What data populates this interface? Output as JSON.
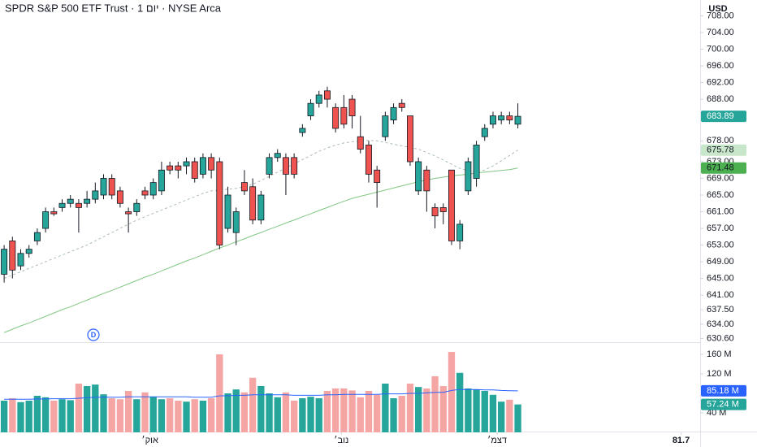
{
  "chart_data": {
    "type": "candlestick",
    "title": "SPDR S&P 500 ETF Trust · 1 יום · NYSE Arca",
    "currency": "USD",
    "event_marker": "D",
    "up_color": "#26a69a",
    "down_color": "#ef5350",
    "volume_up_color": "#26a69a",
    "volume_down_color": "#f5a6a4",
    "x": [
      0,
      1,
      2,
      3,
      4,
      5,
      6,
      7,
      8,
      9,
      10,
      11,
      12,
      13,
      14,
      15,
      16,
      17,
      18,
      19,
      20,
      21,
      22,
      23,
      24,
      25,
      26,
      27,
      28,
      29,
      30,
      31,
      32,
      33,
      34,
      35,
      36,
      37,
      38,
      39,
      40,
      41,
      42,
      43,
      44,
      45,
      46,
      47,
      48,
      49,
      50,
      51,
      52,
      53,
      54,
      55,
      56,
      57,
      58,
      59,
      60,
      61,
      62
    ],
    "xlim": [
      -0.5,
      84
    ],
    "xticks": [
      {
        "value": 17.6,
        "label": "אוק׳"
      },
      {
        "value": 40.7,
        "label": "נוב׳"
      },
      {
        "value": 59.5,
        "label": "דצמ׳"
      },
      81.7
    ],
    "xtick_labels_year": [
      3
    ],
    "open": [
      646,
      654,
      648,
      651,
      654,
      657,
      661,
      662,
      663,
      663,
      663,
      664,
      665,
      669,
      666,
      661,
      661,
      666,
      665,
      666,
      672,
      672,
      672,
      673,
      670,
      674,
      673,
      657,
      656,
      668,
      667,
      659,
      670,
      674,
      674,
      674,
      680,
      684,
      687,
      690,
      686,
      686,
      688,
      679,
      677,
      671,
      679,
      683,
      687,
      684,
      666,
      671,
      662,
      662,
      671,
      654,
      666,
      669,
      679,
      682,
      683,
      684,
      682
    ],
    "high": [
      653,
      655,
      652,
      653,
      657,
      662,
      662,
      664,
      665,
      664,
      666,
      668,
      670,
      670,
      667,
      662,
      664,
      667,
      669,
      673,
      673,
      673,
      674,
      674,
      675,
      675,
      674,
      667,
      662,
      671,
      669,
      666,
      675,
      676,
      675,
      675,
      682,
      688,
      690,
      691,
      687,
      689,
      689,
      684,
      678,
      672,
      685,
      687,
      688,
      684,
      674,
      672,
      663,
      663,
      671,
      659,
      674,
      678,
      682,
      685,
      685,
      685,
      687
    ],
    "low": [
      644,
      645,
      647,
      650,
      653,
      656,
      660,
      661,
      662,
      656,
      662,
      663,
      664,
      664,
      662,
      656,
      660,
      664,
      664,
      665,
      670,
      669,
      670,
      668,
      669,
      669,
      652,
      656,
      653,
      665,
      658,
      658,
      669,
      673,
      665,
      669,
      679,
      683,
      686,
      686,
      680,
      681,
      681,
      675,
      668,
      662,
      678,
      682,
      685,
      672,
      665,
      661,
      657,
      658,
      653,
      652,
      665,
      667,
      678,
      681,
      682,
      682,
      681
    ],
    "close": [
      652,
      647,
      651,
      652,
      656,
      661,
      660.5,
      663,
      664,
      662,
      664,
      666,
      669,
      665,
      663,
      660.5,
      663,
      665,
      668,
      671,
      671,
      671,
      673,
      669,
      674,
      671,
      653,
      665,
      661,
      666,
      659,
      665,
      674,
      675,
      670,
      670,
      681,
      687,
      689,
      688,
      681,
      682,
      684,
      676,
      670,
      668,
      684,
      686,
      686,
      673,
      673,
      666,
      660,
      661,
      654,
      658,
      673,
      677,
      681,
      684,
      684,
      683,
      683.89
    ],
    "series": [
      {
        "color": "#a9bcae",
        "dashed": true,
        "values": [
          645,
          645.8,
          646.6,
          647.4,
          648.2,
          649,
          649.8,
          650.6,
          651.4,
          652.2,
          653,
          654,
          655,
          656,
          657,
          658,
          659,
          659.8,
          660.6,
          661.4,
          662.2,
          663,
          663.8,
          664.6,
          665.4,
          666,
          666.2,
          666.4,
          666.6,
          667,
          667.6,
          668.5,
          669.5,
          670.5,
          671.5,
          672.5,
          673.5,
          674.5,
          675.5,
          676.3,
          677,
          677.5,
          677.8,
          678,
          678.1,
          678,
          677.6,
          677.2,
          676.8,
          676.4,
          676,
          675.2,
          674.4,
          673.4,
          672.4,
          671.4,
          670.8,
          670.6,
          671,
          672,
          673.2,
          674.5,
          675.78
        ],
        "badge_color": "#c8e6c9",
        "badge_text": "#131722"
      },
      {
        "color": "#81c784",
        "dashed": false,
        "values": [
          632,
          632.8,
          633.6,
          634.3,
          635.1,
          635.9,
          636.7,
          637.5,
          638.2,
          639,
          639.8,
          640.6,
          641.4,
          642.1,
          642.9,
          643.7,
          644.5,
          645.3,
          646,
          646.8,
          647.6,
          648.4,
          649.2,
          649.9,
          650.7,
          651.5,
          652.3,
          653,
          653.8,
          654.5,
          655.3,
          656,
          656.8,
          657.5,
          658.3,
          659,
          659.8,
          660.5,
          661.3,
          662,
          662.8,
          663.5,
          664.2,
          664.7,
          665.2,
          665.7,
          666.2,
          666.7,
          667.2,
          667.7,
          668.2,
          668.6,
          669,
          669.3,
          669.6,
          669.8,
          670,
          670.3,
          670.5,
          670.7,
          670.9,
          671.1,
          671.48
        ],
        "badge_color": "#4caf50",
        "badge_text": "#131722"
      }
    ],
    "price_badges": [
      683.89,
      675.78,
      671.48
    ],
    "ylim": [
      629.9,
      711.8
    ],
    "yticks": [
      {
        "value": 708,
        "label": "708.00"
      },
      {
        "value": 704,
        "label": "704.00"
      },
      {
        "value": 700,
        "label": "700.00"
      },
      {
        "value": 696,
        "label": "696.00"
      },
      {
        "value": 692,
        "label": "692.00"
      },
      {
        "value": 688,
        "label": "688.00"
      },
      {
        "value": 678,
        "label": "678.00"
      },
      {
        "value": 673,
        "label": "673.00"
      },
      {
        "value": 669,
        "label": "669.00"
      },
      {
        "value": 665,
        "label": "665.00"
      },
      {
        "value": 661,
        "label": "661.00"
      },
      {
        "value": 657,
        "label": "657.00"
      },
      {
        "value": 653,
        "label": "653.00"
      },
      {
        "value": 649,
        "label": "649.00"
      },
      {
        "value": 645,
        "label": "645.00"
      },
      {
        "value": 641,
        "label": "641.00"
      },
      {
        "value": 637.5,
        "label": "637.50"
      },
      {
        "value": 634,
        "label": "634.00"
      },
      {
        "value": 630.6,
        "label": "630.60"
      }
    ],
    "volume": [
      65,
      70,
      62,
      65,
      75,
      72,
      65,
      68,
      66,
      100,
      95,
      98,
      78,
      70,
      68,
      85,
      68,
      82,
      73,
      68,
      70,
      65,
      63,
      68,
      65,
      70,
      160,
      80,
      88,
      82,
      112,
      95,
      80,
      72,
      82,
      65,
      70,
      73,
      70,
      85,
      90,
      90,
      86,
      72,
      85,
      77,
      100,
      70,
      75,
      100,
      93,
      90,
      115,
      95,
      165,
      122,
      90,
      88,
      85,
      77,
      63,
      67,
      57.24
    ],
    "volume_ma": {
      "color": "#2962ff",
      "values": [
        68,
        68,
        68,
        68,
        68.5,
        68.5,
        69,
        69,
        69,
        70,
        71,
        72,
        72,
        72,
        72,
        73,
        73,
        73,
        73,
        73,
        73,
        73,
        73,
        72,
        72,
        72,
        75,
        75,
        76,
        76,
        77,
        77,
        77,
        77,
        77,
        76,
        76,
        76,
        76,
        77,
        77,
        78,
        78,
        78,
        78,
        78,
        79,
        79,
        79,
        80,
        80,
        81,
        82,
        82,
        86,
        88,
        88,
        88,
        87,
        87,
        86,
        85.5,
        85.18
      ]
    },
    "volume_badges": [
      {
        "value": 85.18,
        "label": "85.18 M",
        "color": "#2962ff"
      },
      {
        "value": 57.24,
        "label": "57.24 M",
        "color": "#26a69a"
      }
    ],
    "volume_ylim": [
      0,
      183.3
    ],
    "volume_yticks": [
      {
        "value": 160,
        "label": "160 M"
      },
      {
        "value": 120,
        "label": "120 M"
      },
      {
        "value": 40,
        "label": "40 M"
      }
    ]
  }
}
